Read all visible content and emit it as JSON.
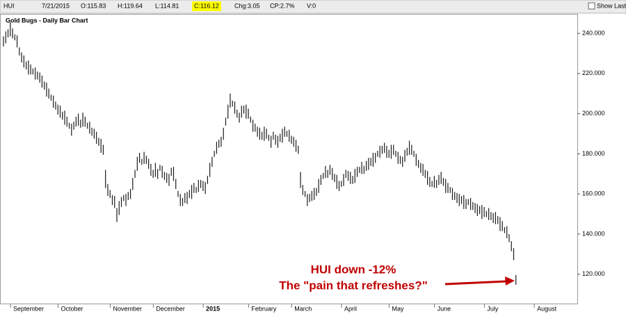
{
  "toolbar": {
    "symbol": "HUI",
    "date": "7/21/2015",
    "open": "O:115.83",
    "high": "H:119.64",
    "low": "L:114.81",
    "close": "C:116.12",
    "change": "Chg:3.05",
    "change_pct": "CP:2.7%",
    "volume": "V:0",
    "show_last": "Show Last"
  },
  "chart_data": {
    "type": "ohlc",
    "title": "Gold Bugs - Daily Bar Chart",
    "color": "#1a1a1a",
    "annotations": [
      "HUI down -12%",
      "The \"pain that refreshes?\""
    ],
    "annotation_color": "#c00000",
    "ylim": [
      105.4,
      249.7
    ],
    "yticks": [
      {
        "value": 120,
        "label": "120.000"
      },
      {
        "value": 140,
        "label": "140.000"
      },
      {
        "value": 160,
        "label": "160.000"
      },
      {
        "value": 180,
        "label": "180.000"
      },
      {
        "value": 200,
        "label": "200.000"
      },
      {
        "value": 220,
        "label": "220.000"
      },
      {
        "value": 240,
        "label": "240.000"
      }
    ],
    "categories": [
      null,
      null,
      null,
      null,
      "September",
      null,
      null,
      null,
      null,
      null,
      null,
      null,
      null,
      null,
      null,
      null,
      null,
      null,
      null,
      null,
      null,
      null,
      null,
      null,
      null,
      "October",
      null,
      null,
      null,
      null,
      null,
      null,
      null,
      null,
      null,
      null,
      null,
      null,
      null,
      null,
      null,
      null,
      null,
      null,
      null,
      null,
      null,
      null,
      "November",
      null,
      null,
      null,
      null,
      null,
      null,
      null,
      null,
      null,
      null,
      null,
      null,
      null,
      null,
      null,
      null,
      null,
      null,
      "December",
      null,
      null,
      null,
      null,
      null,
      null,
      null,
      null,
      null,
      null,
      null,
      null,
      null,
      null,
      null,
      null,
      null,
      null,
      null,
      null,
      null,
      "2015",
      null,
      null,
      null,
      null,
      null,
      null,
      null,
      null,
      null,
      null,
      null,
      null,
      null,
      null,
      null,
      null,
      null,
      null,
      null,
      "February",
      null,
      null,
      null,
      null,
      null,
      null,
      null,
      null,
      null,
      null,
      null,
      null,
      null,
      null,
      null,
      null,
      null,
      null,
      "March",
      null,
      null,
      null,
      null,
      null,
      null,
      null,
      null,
      null,
      null,
      null,
      null,
      null,
      null,
      null,
      null,
      null,
      null,
      null,
      null,
      null,
      "April",
      null,
      null,
      null,
      null,
      null,
      null,
      null,
      null,
      null,
      null,
      null,
      null,
      null,
      null,
      null,
      null,
      null,
      null,
      null,
      null,
      "May",
      null,
      null,
      null,
      null,
      null,
      null,
      null,
      null,
      null,
      null,
      null,
      null,
      null,
      null,
      null,
      null,
      null,
      null,
      null,
      "June",
      null,
      null,
      null,
      null,
      null,
      null,
      null,
      null,
      null,
      null,
      null,
      null,
      null,
      null,
      null,
      null,
      null,
      null,
      null,
      null,
      null,
      "July",
      null,
      null,
      null,
      null,
      null,
      null,
      null,
      null,
      null,
      null,
      null,
      null,
      null,
      null,
      null,
      null,
      null,
      null,
      null,
      null,
      null,
      "August"
    ],
    "highs": [
      238.5,
      241,
      242,
      245.5,
      242.5,
      239.5,
      239,
      233,
      230.5,
      229,
      226,
      226.5,
      224.5,
      222.5,
      223,
      221,
      220.5,
      219,
      216,
      215.5,
      212.5,
      209.5,
      209,
      206,
      204.5,
      204,
      201,
      201.5,
      198.5,
      195.5,
      195,
      196,
      198.5,
      200,
      197,
      200.5,
      198.5,
      195.5,
      196,
      193,
      192.5,
      191,
      188,
      187.5,
      184.5,
      172,
      165,
      162,
      159.5,
      159,
      153,
      156.5,
      158.5,
      159.5,
      160,
      161,
      162.5,
      168,
      172,
      178.5,
      180.5,
      177.5,
      181,
      179,
      177.5,
      175,
      172,
      175.5,
      172.5,
      174.5,
      174,
      171,
      170.5,
      170,
      173,
      173.5,
      167.5,
      161.5,
      160,
      158,
      160.5,
      161,
      162,
      164.5,
      165.5,
      163.5,
      167,
      167,
      166.5,
      166,
      169,
      175.5,
      178.5,
      181.5,
      186,
      187,
      188.5,
      193,
      198,
      204.5,
      210,
      206.5,
      206,
      202,
      200.5,
      204,
      204,
      204.5,
      202.5,
      198.5,
      197,
      195,
      193.5,
      193,
      191,
      193.5,
      192.5,
      189.5,
      189,
      191,
      189.5,
      189,
      190,
      192.5,
      193.5,
      191.5,
      192,
      189,
      188.5,
      187,
      184,
      171,
      164.5,
      161.5,
      160,
      160,
      161.5,
      163,
      163,
      167.5,
      169.5,
      170.5,
      174,
      172,
      174.5,
      173,
      170,
      169.5,
      166.5,
      166.5,
      170,
      172,
      171.5,
      171,
      169,
      172.5,
      173.5,
      173.5,
      176,
      174,
      176.5,
      178,
      178,
      180.5,
      180.5,
      181.5,
      184,
      184,
      185.5,
      184,
      182,
      184.5,
      184.5,
      181.5,
      181,
      179,
      178.5,
      182,
      183,
      186.5,
      184.5,
      181.5,
      180,
      177,
      175.5,
      175,
      172,
      171.5,
      168.5,
      166.5,
      169,
      167,
      169.5,
      171,
      168,
      167.5,
      165.5,
      163.5,
      163,
      161,
      160.5,
      160,
      159,
      159.5,
      157.5,
      157.5,
      158,
      156,
      155.5,
      155,
      154,
      154.5,
      153.5,
      151.5,
      153,
      151,
      150.5,
      151,
      149,
      148.5,
      146.5,
      143.5,
      144,
      140,
      136.5,
      133,
      119.64,
      null,
      null,
      null,
      null,
      null,
      null,
      null,
      null,
      null
    ],
    "lows": [
      233.5,
      235,
      238,
      238.5,
      237.5,
      236.5,
      233,
      229,
      225.5,
      223,
      222,
      219.5,
      219.5,
      219.5,
      217,
      217,
      215.5,
      213,
      212,
      208.5,
      207.5,
      206.5,
      203,
      202,
      199.5,
      198,
      197,
      194.5,
      193.5,
      192.5,
      189,
      192,
      193.5,
      194,
      193,
      193.5,
      193.5,
      192.5,
      190,
      189,
      187.5,
      185,
      184,
      180.5,
      179.5,
      163,
      159,
      158,
      154.5,
      153,
      146,
      149.5,
      153.5,
      156.5,
      154,
      157,
      157.5,
      162,
      168,
      171.5,
      175.5,
      174.5,
      175,
      175,
      172.5,
      169,
      168,
      168.5,
      167.5,
      171.5,
      168,
      167,
      165.5,
      164,
      169,
      166.5,
      162.5,
      158.5,
      154,
      154,
      155.5,
      155,
      158,
      157.5,
      160.5,
      160.5,
      161,
      163,
      161.5,
      160,
      165,
      168.5,
      173.5,
      178.5,
      180,
      183,
      183.5,
      187,
      194,
      197.5,
      203,
      203.5,
      200,
      198,
      195.5,
      198,
      200,
      197.5,
      197.5,
      195.5,
      191,
      191,
      188.5,
      187,
      187,
      186.5,
      187.5,
      186.5,
      183,
      187,
      184.5,
      183,
      186,
      185.5,
      188.5,
      188.5,
      186,
      185,
      183.5,
      181,
      180,
      163,
      159.5,
      158.5,
      154,
      156,
      156.5,
      157,
      159,
      160.5,
      164.5,
      167.5,
      168,
      168,
      169.5,
      167,
      166,
      162.5,
      161.5,
      163.5,
      164,
      168,
      166.5,
      165,
      165,
      165.5,
      168.5,
      170.5,
      170,
      170,
      171.5,
      172,
      174,
      173.5,
      175.5,
      178.5,
      178,
      180,
      180.5,
      178,
      178,
      177.5,
      179.5,
      178.5,
      175,
      175,
      173.5,
      176,
      179,
      179.5,
      179.5,
      178.5,
      174,
      173,
      170.5,
      169,
      168,
      164.5,
      163.5,
      163.5,
      163,
      163,
      164.5,
      165,
      164,
      160.5,
      160.5,
      160.5,
      157,
      157,
      155.5,
      154,
      155,
      152.5,
      152.5,
      154.5,
      152,
      152,
      150.5,
      149,
      150,
      147.5,
      148.5,
      148.5,
      147,
      147,
      145.5,
      145,
      145,
      141.5,
      141.5,
      140.5,
      138,
      136,
      131.5,
      127,
      114.81,
      null,
      null,
      null,
      null,
      null,
      null,
      null,
      null,
      null
    ]
  }
}
